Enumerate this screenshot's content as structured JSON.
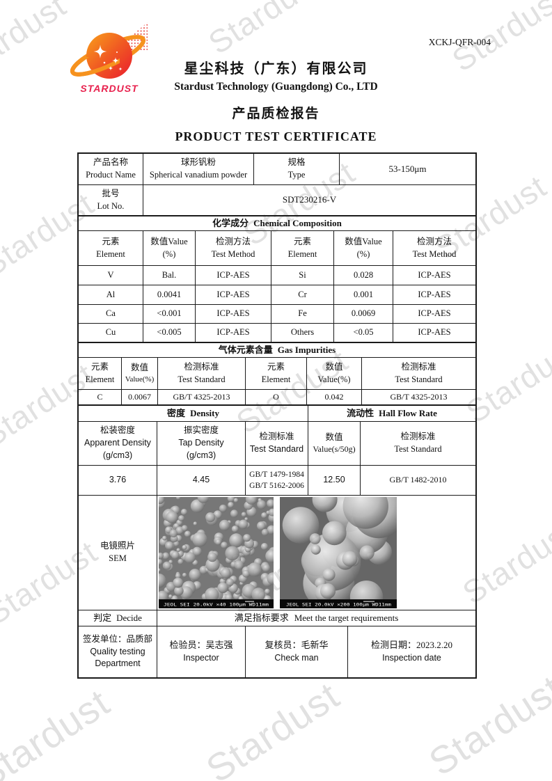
{
  "doc_no": "XCKJ-QFR-004",
  "header": {
    "logo_text": "STARDUST",
    "company_cn": "星尘科技（广东）有限公司",
    "company_en": "Stardust Technology (Guangdong) Co., LTD",
    "report_cn": "产品质检报告",
    "report_en": "PRODUCT TEST CERTIFICATE"
  },
  "watermark": {
    "text": "Stardust",
    "color": "#c9c9c9"
  },
  "colors": {
    "logo_orange": "#F6921E",
    "logo_red": "#EC1C24",
    "logo_wordmark": "#E8224E",
    "table_border": "#1a1a1a"
  },
  "product": {
    "name_label_cn": "产品名称",
    "name_label_en": "Product Name",
    "name_cn": "球形钒粉",
    "name_en": "Spherical vanadium powder",
    "type_label_cn": "规格",
    "type_label_en": "Type",
    "type_value": "53-150μm",
    "lot_label_cn": "批号",
    "lot_label_en": "Lot No.",
    "lot_value": "SDT230216-V"
  },
  "chemical": {
    "title_cn": "化学成分",
    "title_en": "Chemical Composition",
    "header": [
      {
        "cn": "元素",
        "en": "Element"
      },
      {
        "cn": "数值Value",
        "en": "(%)"
      },
      {
        "cn": "检测方法",
        "en": "Test Method"
      },
      {
        "cn": "元素",
        "en": "Element"
      },
      {
        "cn": "数值Value",
        "en": "(%)"
      },
      {
        "cn": "检测方法",
        "en": "Test Method"
      }
    ],
    "rows": [
      [
        "V",
        "Bal.",
        "ICP-AES",
        "Si",
        "0.028",
        "ICP-AES"
      ],
      [
        "Al",
        "0.0041",
        "ICP-AES",
        "Cr",
        "0.001",
        "ICP-AES"
      ],
      [
        "Ca",
        "<0.001",
        "ICP-AES",
        "Fe",
        "0.0069",
        "ICP-AES"
      ],
      [
        "Cu",
        "<0.005",
        "ICP-AES",
        "Others",
        "<0.05",
        "ICP-AES"
      ]
    ]
  },
  "gas": {
    "title_cn": "气体元素含量",
    "title_en": "Gas Impurities",
    "header": [
      {
        "cn": "元素",
        "en": "Element"
      },
      {
        "cn": "数值",
        "en": "Value(%)"
      },
      {
        "cn": "检测标准",
        "en": "Test Standard"
      },
      {
        "cn": "元素",
        "en": "Element"
      },
      {
        "cn": "数值",
        "en": "Value(%)"
      },
      {
        "cn": "检测标准",
        "en": "Test Standard"
      }
    ],
    "row": [
      "C",
      "0.0067",
      "GB/T 4325-2013",
      "O",
      "0.042",
      "GB/T 4325-2013"
    ]
  },
  "density": {
    "title_cn": "密度",
    "title_en": "Density",
    "hall_title_cn": "流动性",
    "hall_title_en": "Hall Flow Rate",
    "apparent_cn": "松装密度",
    "apparent_en": "Apparent Density",
    "apparent_unit": "(g/cm3)",
    "tap_cn": "振实密度",
    "tap_en": "Tap Density",
    "tap_unit": "(g/cm3)",
    "std_cn": "检测标准",
    "std_en": "Test Standard",
    "hall_value_cn": "数值",
    "hall_value_en": "Value(s/50g)",
    "hall_std_cn": "检测标准",
    "hall_std_en": "Test Standard",
    "apparent_value": "3.76",
    "tap_value": "4.45",
    "std_value_1": "GB/T 1479-1984",
    "std_value_2": "GB/T 5162-2006",
    "hall_value": "12.50",
    "hall_std_value": "GB/T 1482-2010"
  },
  "sem": {
    "label_cn": "电镜照片",
    "label_en": "SEM",
    "left_caption": "JEOL SEI  20.0kV   ×40  100μm WD11mm",
    "right_caption": "JEOL SEI  20.0kV   ×200  100μm WD11mm"
  },
  "decide": {
    "label_cn": "判定",
    "label_en": "Decide",
    "result_cn": "满足指标要求",
    "result_en": "Meet the target requirements"
  },
  "signoff": {
    "issuer_cn": "签发单位：品质部",
    "issuer_en1": "Quality testing",
    "issuer_en2": "Department",
    "inspector_cn": "检验员：吴志强",
    "inspector_en": "Inspector",
    "checker_cn": "复核员：毛新华",
    "checker_en": "Check man",
    "date_cn": "检测日期：2023.2.20",
    "date_en": "Inspection date"
  }
}
